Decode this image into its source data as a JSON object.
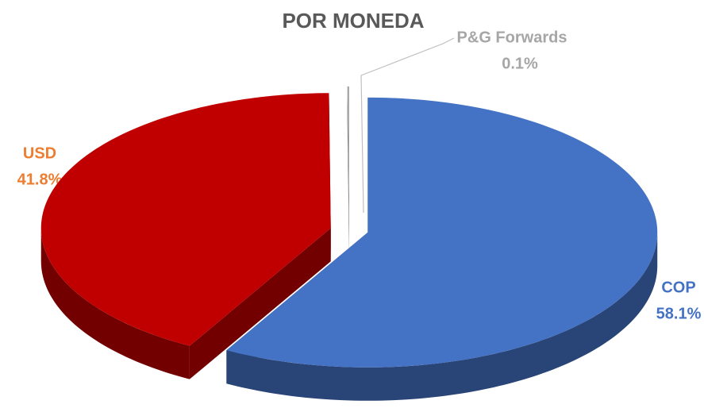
{
  "chart_data": {
    "type": "pie",
    "title": "POR MONEDA",
    "categories": [
      "COP",
      "USD",
      "P&G Forwards"
    ],
    "values": [
      58.1,
      41.8,
      0.1
    ],
    "value_labels": [
      "58.1%",
      "41.8%",
      "0.1%"
    ],
    "colors": [
      "#4472c4",
      "#c00000",
      "#a5a5a5"
    ],
    "label_colors": [
      "#4472c4",
      "#ed7d31",
      "#a6a6a6"
    ]
  }
}
